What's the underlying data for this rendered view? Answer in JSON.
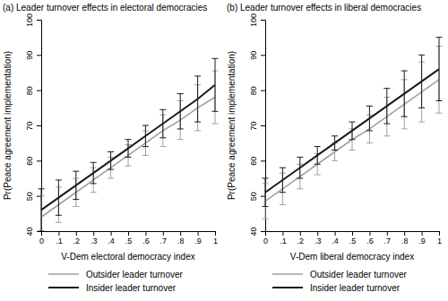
{
  "chart_data": [
    {
      "type": "line",
      "title": "(a) Leader turnover effects in electoral democracies",
      "x_label": "V-Dem electoral democracy index",
      "y_label": "Pr(Peace agreement implementation)",
      "x": [
        0,
        0.1,
        0.2,
        0.3,
        0.4,
        0.5,
        0.6,
        0.7,
        0.8,
        0.9,
        1
      ],
      "xlim": [
        0,
        1
      ],
      "xticks": [
        0,
        {
          "value": 0.1,
          "label": ".1"
        },
        {
          "value": 0.2,
          "label": ".2"
        },
        {
          "value": 0.3,
          "label": ".3"
        },
        {
          "value": 0.4,
          "label": ".4"
        },
        {
          "value": 0.5,
          "label": ".5"
        },
        {
          "value": 0.6,
          "label": ".6"
        },
        {
          "value": 0.7,
          "label": ".7"
        },
        {
          "value": 0.8,
          "label": ".8"
        },
        {
          "value": 0.9,
          "label": ".9"
        },
        1
      ],
      "ylim": [
        40,
        100
      ],
      "yticks": [
        40,
        50,
        60,
        70,
        80,
        90,
        100
      ],
      "grid": false,
      "legend": "bottom",
      "series": [
        {
          "name": "Outsider leader turnover",
          "color": "#a0a0a0",
          "line_style": "solid",
          "values": [
            44,
            47.5,
            51,
            54.5,
            58,
            61.5,
            65,
            68.5,
            71.5,
            75,
            78
          ],
          "errors": [
            6,
            5,
            4,
            3.5,
            3,
            3,
            3.5,
            4.5,
            5.5,
            6.5,
            7.5
          ]
        },
        {
          "name": "Insider leader turnover",
          "color": "#1a1a1a",
          "line_style": "solid",
          "values": [
            46,
            49.5,
            53,
            56.5,
            60,
            63.5,
            67,
            70.5,
            74,
            77.5,
            81.5
          ],
          "errors": [
            6,
            5,
            4,
            3,
            2.5,
            2.5,
            3,
            4,
            5,
            6.5,
            7.5
          ]
        }
      ]
    },
    {
      "type": "line",
      "title": "(b) Leader turnover effects in liberal democracies",
      "x_label": "V-Dem liberal democracy index",
      "y_label": "Pr(Peace agreement implementation)",
      "x": [
        0,
        0.1,
        0.2,
        0.3,
        0.4,
        0.5,
        0.6,
        0.7,
        0.8,
        0.9,
        1
      ],
      "xlim": [
        0,
        1
      ],
      "xticks": [
        0,
        {
          "value": 0.1,
          "label": ".1"
        },
        {
          "value": 0.2,
          "label": ".2"
        },
        {
          "value": 0.3,
          "label": ".3"
        },
        {
          "value": 0.4,
          "label": ".4"
        },
        {
          "value": 0.5,
          "label": ".5"
        },
        {
          "value": 0.6,
          "label": ".6"
        },
        {
          "value": 0.7,
          "label": ".7"
        },
        {
          "value": 0.8,
          "label": ".8"
        },
        {
          "value": 0.9,
          "label": ".9"
        },
        1
      ],
      "ylim": [
        40,
        100
      ],
      "yticks": [
        40,
        50,
        60,
        70,
        80,
        90,
        100
      ],
      "grid": false,
      "legend": "bottom",
      "series": [
        {
          "name": "Outsider leader turnover",
          "color": "#a0a0a0",
          "line_style": "solid",
          "values": [
            48.5,
            52,
            55.5,
            59,
            62.5,
            66,
            69,
            72.5,
            76,
            79.5,
            83
          ],
          "errors": [
            5,
            4.5,
            3.5,
            3,
            2.5,
            3,
            4,
            5.5,
            7,
            8.5,
            9.5
          ]
        },
        {
          "name": "Insider leader turnover",
          "color": "#1a1a1a",
          "line_style": "solid",
          "values": [
            51,
            54.5,
            58,
            61.5,
            65,
            68.5,
            72,
            75.5,
            79,
            82.5,
            86
          ],
          "errors": [
            4,
            3.5,
            3,
            2.5,
            2,
            2.5,
            3.5,
            5,
            6.5,
            7.5,
            9
          ]
        }
      ]
    }
  ]
}
